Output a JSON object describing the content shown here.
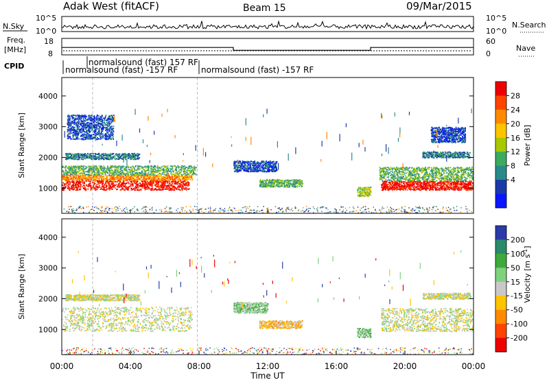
{
  "header": {
    "title": "Adak West (fitACF)",
    "beam": "Beam 15",
    "date": "09/Mar/2015"
  },
  "panels": {
    "nsky_label": "N.Sky",
    "nsearch_label": "N.Search",
    "nsky_ticks": [
      "10^5",
      "10^0"
    ],
    "nsearch_ticks": [
      "10^5",
      "10^0"
    ],
    "freq_label_1": "Freq.",
    "freq_label_2": "[MHz]",
    "freq_ticks": [
      "18",
      "8"
    ],
    "nave_label": "Nave",
    "nave_ticks": [
      "60",
      "0"
    ],
    "cpid_label": "CPID",
    "cpid_segments": [
      "normalsound (fast) -157 RF",
      "normalsound (fast) 157 RF",
      "normalsound (fast) -157 RF"
    ]
  },
  "chart_data": {
    "type": "heatmap",
    "x_axis": {
      "label": "Time UT",
      "ticks": [
        "00:00",
        "04:00",
        "08:00",
        "12:00",
        "16:00",
        "20:00",
        "00:00"
      ],
      "range_hours": [
        0,
        24
      ]
    },
    "y_axis": {
      "label": "Slant Range [km]",
      "ticks": [
        1000,
        2000,
        3000,
        4000
      ],
      "range_km": [
        180,
        4600
      ]
    },
    "frequency_series": {
      "unit": "MHz",
      "segments": [
        {
          "start_h": 0,
          "end_h": 10.0,
          "value": 12.5
        },
        {
          "start_h": 10.0,
          "end_h": 18.0,
          "value": 10.8
        },
        {
          "start_h": 18.0,
          "end_h": 24,
          "value": 12.5
        }
      ]
    },
    "cpid_changes_h": [
      1.8,
      7.9
    ],
    "power": {
      "colorbar_label": "Power [dB]",
      "ticks": [
        "28",
        "24",
        "20",
        "16",
        "12",
        "8",
        "4"
      ],
      "colors": [
        "#ee0000",
        "#ff4400",
        "#ff8a00",
        "#ffc400",
        "#a8c800",
        "#3caa60",
        "#2a8a8a",
        "#1a3aa8",
        "#0a16ff"
      ],
      "blobs": [
        {
          "t0": 0,
          "t1": 7.4,
          "r0": 950,
          "r1": 1270,
          "lvl": 0
        },
        {
          "t0": 0,
          "t1": 7.6,
          "r0": 1270,
          "r1": 1450,
          "lvl": 2
        },
        {
          "t0": 0,
          "t1": 7.8,
          "r0": 1450,
          "r1": 1750,
          "lvl": 5
        },
        {
          "t0": 0.2,
          "t1": 4.5,
          "r0": 1950,
          "r1": 2150,
          "lvl": 6
        },
        {
          "t0": 0.3,
          "t1": 3.0,
          "r0": 2600,
          "r1": 3400,
          "lvl": 7
        },
        {
          "t0": 10.0,
          "t1": 12.5,
          "r0": 1550,
          "r1": 1900,
          "lvl": 7
        },
        {
          "t0": 11.5,
          "t1": 14.0,
          "r0": 1050,
          "r1": 1300,
          "lvl": 5
        },
        {
          "t0": 17.2,
          "t1": 18.0,
          "r0": 750,
          "r1": 1050,
          "lvl": 4
        },
        {
          "t0": 18.6,
          "t1": 24,
          "r0": 950,
          "r1": 1250,
          "lvl": 0
        },
        {
          "t0": 18.5,
          "t1": 24,
          "r0": 1250,
          "r1": 1700,
          "lvl": 5
        },
        {
          "t0": 21.0,
          "t1": 23.8,
          "r0": 2000,
          "r1": 2200,
          "lvl": 6
        },
        {
          "t0": 21.5,
          "t1": 23.5,
          "r0": 2500,
          "r1": 3000,
          "lvl": 7
        }
      ]
    },
    "velocity": {
      "colorbar_label": "Velocity [m s^-1]",
      "ticks": [
        "200",
        "100",
        "50",
        "15",
        "-15",
        "-50",
        "-100",
        "-200"
      ],
      "colors": [
        "#2a3aa8",
        "#2a8a6a",
        "#3caa3c",
        "#7ed27e",
        "#c8c8c8",
        "#ffc400",
        "#ff8a00",
        "#ff4400",
        "#ee0000"
      ],
      "blobs": [
        {
          "t0": 0,
          "t1": 7.6,
          "r0": 950,
          "r1": 1750,
          "lvl": 4
        },
        {
          "t0": 0.2,
          "t1": 4.5,
          "r0": 1950,
          "r1": 2150,
          "lvl": 4
        },
        {
          "t0": 10.0,
          "t1": 12.0,
          "r0": 1550,
          "r1": 1900,
          "lvl": 3
        },
        {
          "t0": 11.5,
          "t1": 14.0,
          "r0": 1050,
          "r1": 1300,
          "lvl": 5
        },
        {
          "t0": 17.2,
          "t1": 18.0,
          "r0": 750,
          "r1": 1050,
          "lvl": 3
        },
        {
          "t0": 18.6,
          "t1": 24,
          "r0": 950,
          "r1": 1700,
          "lvl": 4
        },
        {
          "t0": 21.0,
          "t1": 23.8,
          "r0": 2000,
          "r1": 2200,
          "lvl": 4
        }
      ]
    }
  }
}
